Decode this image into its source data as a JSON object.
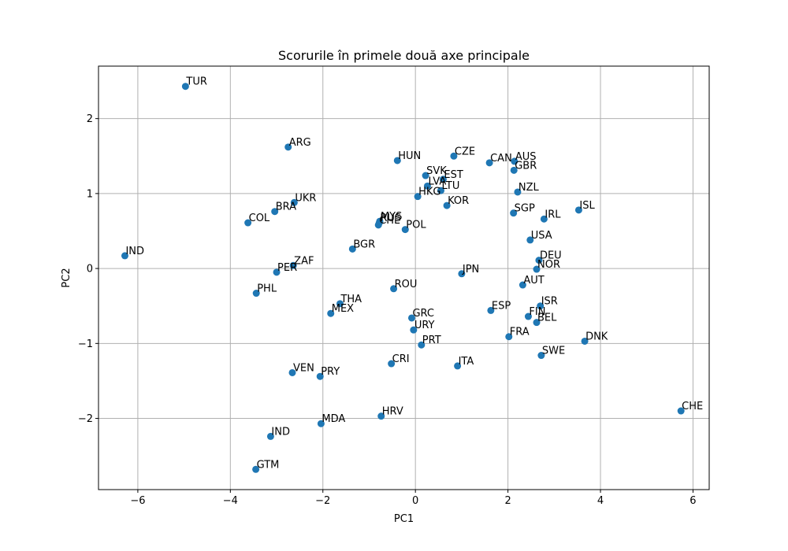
{
  "chart_data": {
    "type": "scatter",
    "title": "Scorurile în primele două axe principale",
    "xlabel": "PC1",
    "ylabel": "PC2",
    "xlim": [
      -6.85,
      6.35
    ],
    "ylim": [
      -2.95,
      2.7
    ],
    "xticks": [
      -6,
      -4,
      -2,
      0,
      2,
      4,
      6
    ],
    "yticks": [
      -2,
      -1,
      0,
      1,
      2
    ],
    "xtick_labels": [
      "−6",
      "−4",
      "−2",
      "0",
      "2",
      "4",
      "6"
    ],
    "ytick_labels": [
      "−2",
      "−1",
      "0",
      "1",
      "2"
    ],
    "grid": true,
    "marker_color": "#1f77b4",
    "points": [
      {
        "label": "TUR",
        "x": -4.97,
        "y": 2.43
      },
      {
        "label": "ARG",
        "x": -2.75,
        "y": 1.62
      },
      {
        "label": "HUN",
        "x": -0.39,
        "y": 1.44
      },
      {
        "label": "CZE",
        "x": 0.83,
        "y": 1.5
      },
      {
        "label": "CAN",
        "x": 1.6,
        "y": 1.41
      },
      {
        "label": "AUS",
        "x": 2.14,
        "y": 1.43
      },
      {
        "label": "GBR",
        "x": 2.13,
        "y": 1.31
      },
      {
        "label": "SVK",
        "x": 0.22,
        "y": 1.24
      },
      {
        "label": "EST",
        "x": 0.6,
        "y": 1.19
      },
      {
        "label": "LVA",
        "x": 0.26,
        "y": 1.1
      },
      {
        "label": "LTU",
        "x": 0.55,
        "y": 1.04
      },
      {
        "label": "HKG",
        "x": 0.05,
        "y": 0.96
      },
      {
        "label": "NZL",
        "x": 2.21,
        "y": 1.02
      },
      {
        "label": "UKR",
        "x": -2.62,
        "y": 0.88
      },
      {
        "label": "BRA",
        "x": -3.04,
        "y": 0.76
      },
      {
        "label": "COL",
        "x": -3.62,
        "y": 0.61
      },
      {
        "label": "KOR",
        "x": 0.68,
        "y": 0.84
      },
      {
        "label": "ISL",
        "x": 3.53,
        "y": 0.78
      },
      {
        "label": "SGP",
        "x": 2.12,
        "y": 0.74
      },
      {
        "label": "IRL",
        "x": 2.78,
        "y": 0.66
      },
      {
        "label": "MYS",
        "x": -0.77,
        "y": 0.63
      },
      {
        "label": "RUS",
        "x": -0.78,
        "y": 0.61
      },
      {
        "label": "CHL",
        "x": -0.8,
        "y": 0.58
      },
      {
        "label": "POL",
        "x": -0.22,
        "y": 0.52
      },
      {
        "label": "USA",
        "x": 2.48,
        "y": 0.38
      },
      {
        "label": "IND",
        "x": -6.28,
        "y": 0.17
      },
      {
        "label": "BGR",
        "x": -1.36,
        "y": 0.26
      },
      {
        "label": "DEU",
        "x": 2.67,
        "y": 0.11
      },
      {
        "label": "NOR",
        "x": 2.62,
        "y": -0.01
      },
      {
        "label": "ZAF",
        "x": -2.64,
        "y": 0.04
      },
      {
        "label": "PER",
        "x": -3.0,
        "y": -0.05
      },
      {
        "label": "JPN",
        "x": 1.0,
        "y": -0.07
      },
      {
        "label": "AUT",
        "x": 2.32,
        "y": -0.22
      },
      {
        "label": "ROU",
        "x": -0.47,
        "y": -0.27
      },
      {
        "label": "PHL",
        "x": -3.44,
        "y": -0.33
      },
      {
        "label": "THA",
        "x": -1.63,
        "y": -0.47
      },
      {
        "label": "MEX",
        "x": -1.83,
        "y": -0.6
      },
      {
        "label": "ISR",
        "x": 2.7,
        "y": -0.5
      },
      {
        "label": "ESP",
        "x": 1.63,
        "y": -0.56
      },
      {
        "label": "FIN",
        "x": 2.44,
        "y": -0.64
      },
      {
        "label": "BEL",
        "x": 2.62,
        "y": -0.72
      },
      {
        "label": "GRC",
        "x": -0.08,
        "y": -0.66
      },
      {
        "label": "URY",
        "x": -0.04,
        "y": -0.82
      },
      {
        "label": "FRA",
        "x": 2.02,
        "y": -0.91
      },
      {
        "label": "DNK",
        "x": 3.66,
        "y": -0.97
      },
      {
        "label": "PRT",
        "x": 0.13,
        "y": -1.02
      },
      {
        "label": "SWE",
        "x": 2.72,
        "y": -1.16
      },
      {
        "label": "CRI",
        "x": -0.52,
        "y": -1.27
      },
      {
        "label": "ITA",
        "x": 0.91,
        "y": -1.3
      },
      {
        "label": "VEN",
        "x": -2.66,
        "y": -1.39
      },
      {
        "label": "PRY",
        "x": -2.06,
        "y": -1.44
      },
      {
        "label": "CHE",
        "x": 5.74,
        "y": -1.9
      },
      {
        "label": "HRV",
        "x": -0.74,
        "y": -1.97
      },
      {
        "label": "MDA",
        "x": -2.04,
        "y": -2.07
      },
      {
        "label": "IND",
        "x": -3.13,
        "y": -2.24
      },
      {
        "label": "GTM",
        "x": -3.45,
        "y": -2.68
      }
    ]
  }
}
